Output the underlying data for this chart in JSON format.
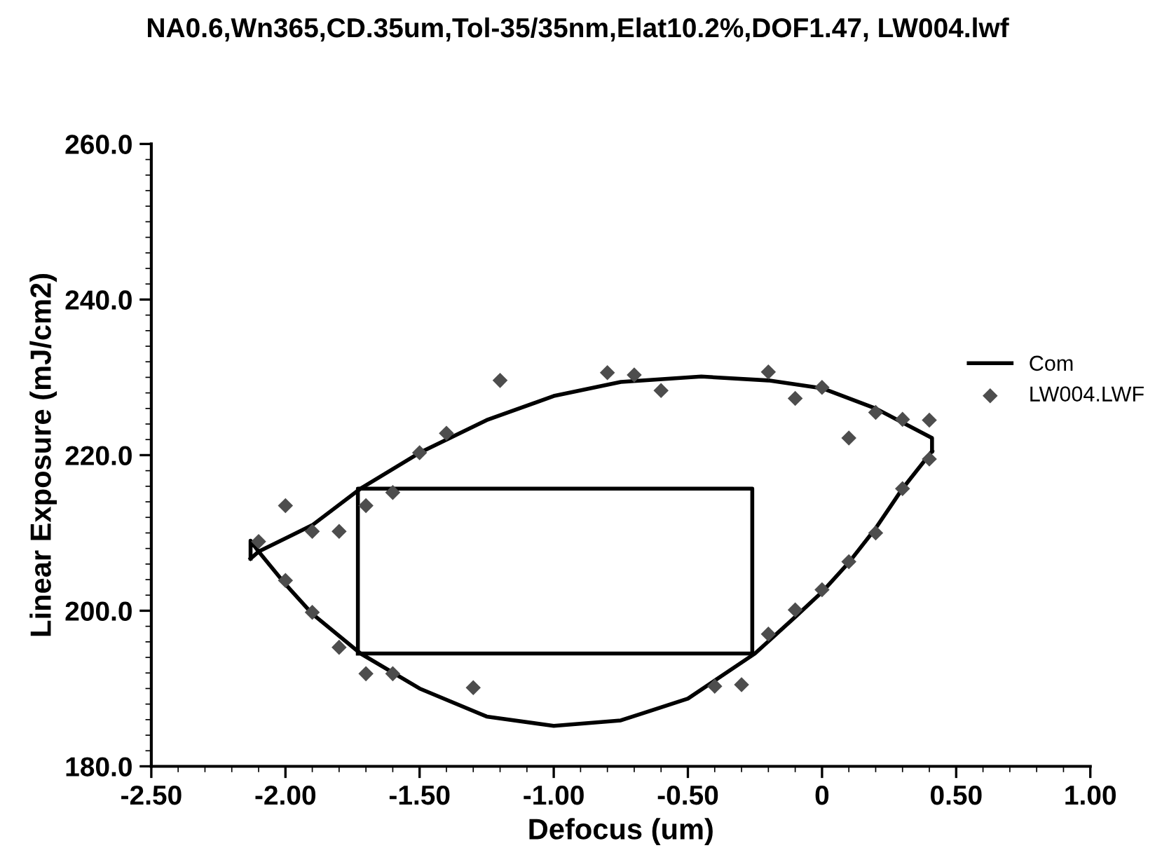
{
  "chart_data": {
    "type": "scatter",
    "title": "NA0.6,Wn365,CD.35um,Tol-35/35nm,Elat10.2%,DOF1.47, LW004.lwf",
    "xlabel": "Defocus (um)",
    "ylabel": "Linear Exposure (mJ/cm2)",
    "xlim": [
      -2.5,
      1.0
    ],
    "ylim": [
      180,
      260
    ],
    "xticks": [
      {
        "value": -2.5,
        "label": "-2.50"
      },
      {
        "value": -2.0,
        "label": "-2.00"
      },
      {
        "value": -1.5,
        "label": "-1.50"
      },
      {
        "value": -1.0,
        "label": "-1.00"
      },
      {
        "value": -0.5,
        "label": "-0.50"
      },
      0,
      {
        "value": 0.5,
        "label": "0.50"
      },
      {
        "value": 1.0,
        "label": "1.00"
      }
    ],
    "yticks": [
      {
        "value": 180,
        "label": "180.0"
      },
      {
        "value": 200,
        "label": "200.0"
      },
      {
        "value": 220,
        "label": "220.0"
      },
      {
        "value": 240,
        "label": "240.0"
      },
      {
        "value": 260,
        "label": "260.0"
      }
    ],
    "grid": false,
    "legend": "right",
    "series": [
      {
        "name": "Com",
        "type": "line",
        "color": "#000000",
        "marker": "none",
        "line_style": "solid",
        "x": [
          -2.13,
          -2.13,
          -2.1,
          -1.9,
          -1.72,
          -1.5,
          -1.25,
          -1.0,
          -0.75,
          -0.45,
          -0.2,
          0,
          0.2,
          0.41,
          0.41
        ],
        "values": [
          206.7,
          209.0,
          207.6,
          211.0,
          215.7,
          220.3,
          224.5,
          227.6,
          229.4,
          230.1,
          229.6,
          228.6,
          226.0,
          222.2,
          220.5
        ]
      },
      {
        "type": "line",
        "color": "#000000",
        "marker": "none",
        "line_style": "solid",
        "x": [
          -2.13,
          -2.1,
          -2.0,
          -1.9,
          -1.72,
          -1.5,
          -1.25,
          -1.0,
          -0.75,
          -0.5,
          -0.25,
          -0.1,
          0,
          0.1,
          0.2,
          0.3,
          0.41
        ],
        "values": [
          206.7,
          207.6,
          203.4,
          199.6,
          194.5,
          190.0,
          186.4,
          185.2,
          185.9,
          188.7,
          194.5,
          199.2,
          202.4,
          206.2,
          210.6,
          215.7,
          220.5
        ]
      },
      {
        "type": "line",
        "color": "#000000",
        "marker": "none",
        "line_style": "solid",
        "x": [
          -1.73,
          -1.73,
          -0.26,
          -0.26
        ],
        "values": [
          194.5,
          215.7,
          215.7,
          194.5
        ]
      },
      {
        "type": "line",
        "color": "#000000",
        "marker": "none",
        "line_style": "solid",
        "x": [
          -1.73,
          -0.26
        ],
        "values": [
          194.5,
          194.5
        ]
      },
      {
        "name": "LW004.LWF",
        "color": "#4d4d4d",
        "marker": "diamond",
        "x": [
          -2.1,
          -2.0,
          -2.0,
          -1.9,
          -1.9,
          -1.8,
          -1.8,
          -1.7,
          -1.7,
          -1.6,
          -1.6,
          -1.5,
          -1.4,
          -1.3,
          -1.2,
          -0.8,
          -0.7,
          -0.6,
          -0.4,
          -0.3,
          -0.2,
          -0.2,
          -0.1,
          -0.1,
          0,
          0,
          0.1,
          0.1,
          0.2,
          0.2,
          0.3,
          0.3,
          0.4,
          0.4
        ],
        "values": [
          208.9,
          213.5,
          203.9,
          210.2,
          199.8,
          210.2,
          195.3,
          213.5,
          191.9,
          215.2,
          191.9,
          220.3,
          222.8,
          190.1,
          229.6,
          230.6,
          230.3,
          228.3,
          190.3,
          190.5,
          230.7,
          197.0,
          227.3,
          200.1,
          228.7,
          202.7,
          222.2,
          206.3,
          225.5,
          210.0,
          224.6,
          215.7,
          224.5,
          219.5
        ]
      }
    ]
  }
}
